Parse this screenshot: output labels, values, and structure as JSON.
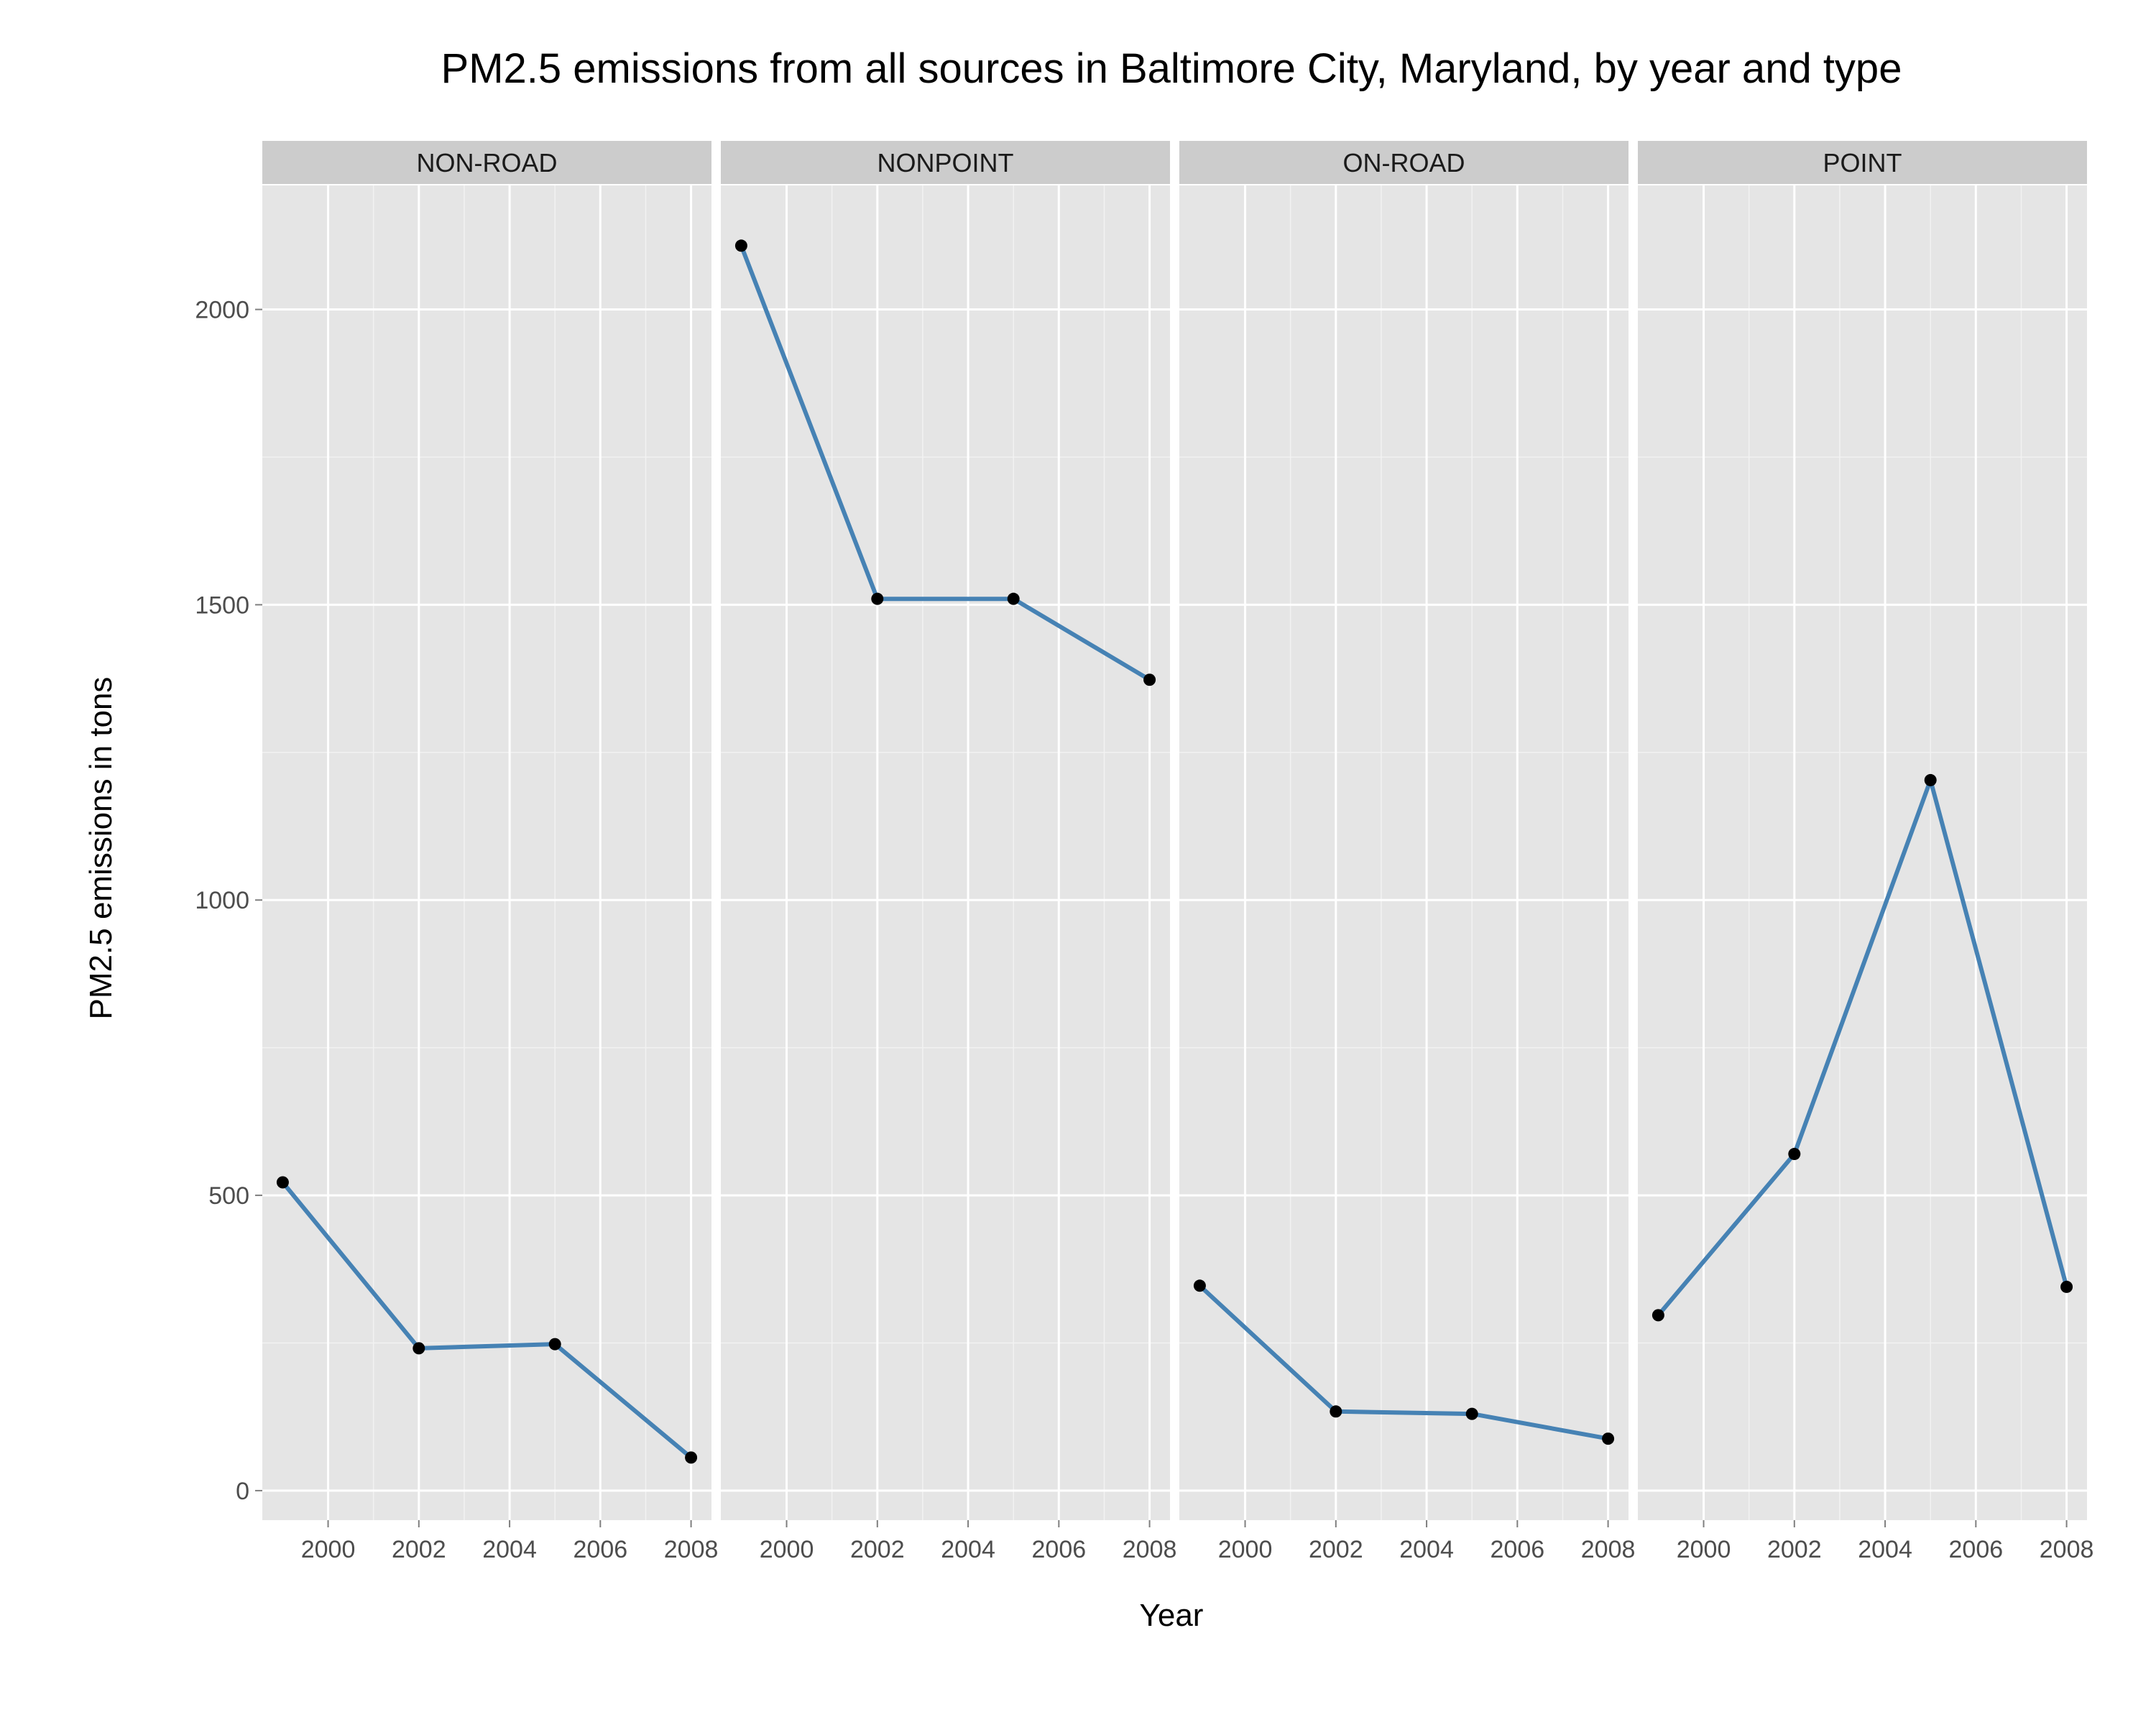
{
  "chart_data": {
    "type": "line",
    "title": "PM2.5 emissions from all sources in Baltimore City, Maryland, by year and type",
    "xlabel": "Year",
    "ylabel": "PM2.5 emissions in tons",
    "x": [
      1999,
      2002,
      2005,
      2008
    ],
    "xticks": [
      "2000",
      "2002",
      "2004",
      "2006",
      "2008"
    ],
    "xtick_values": [
      2000,
      2002,
      2004,
      2006,
      2008
    ],
    "yticks": [
      "0",
      "500",
      "1000",
      "1500",
      "2000"
    ],
    "ytick_values": [
      0,
      500,
      1000,
      1500,
      2000
    ],
    "xlim": [
      1998.55,
      2008.45
    ],
    "ylim": [
      -50,
      2210
    ],
    "grid": true,
    "line_color": "#4682B4",
    "point_color": "#000000",
    "panel_color": "#E5E5E5",
    "strip_color": "#CCCCCC",
    "facets": [
      {
        "name": "NON-ROAD",
        "values": [
          522,
          241,
          248,
          56
        ]
      },
      {
        "name": "NONPOINT",
        "values": [
          2108,
          1510,
          1510,
          1373
        ]
      },
      {
        "name": "ON-ROAD",
        "values": [
          347,
          134,
          130,
          88
        ]
      },
      {
        "name": "POINT",
        "values": [
          297,
          570,
          1203,
          345
        ]
      }
    ]
  }
}
